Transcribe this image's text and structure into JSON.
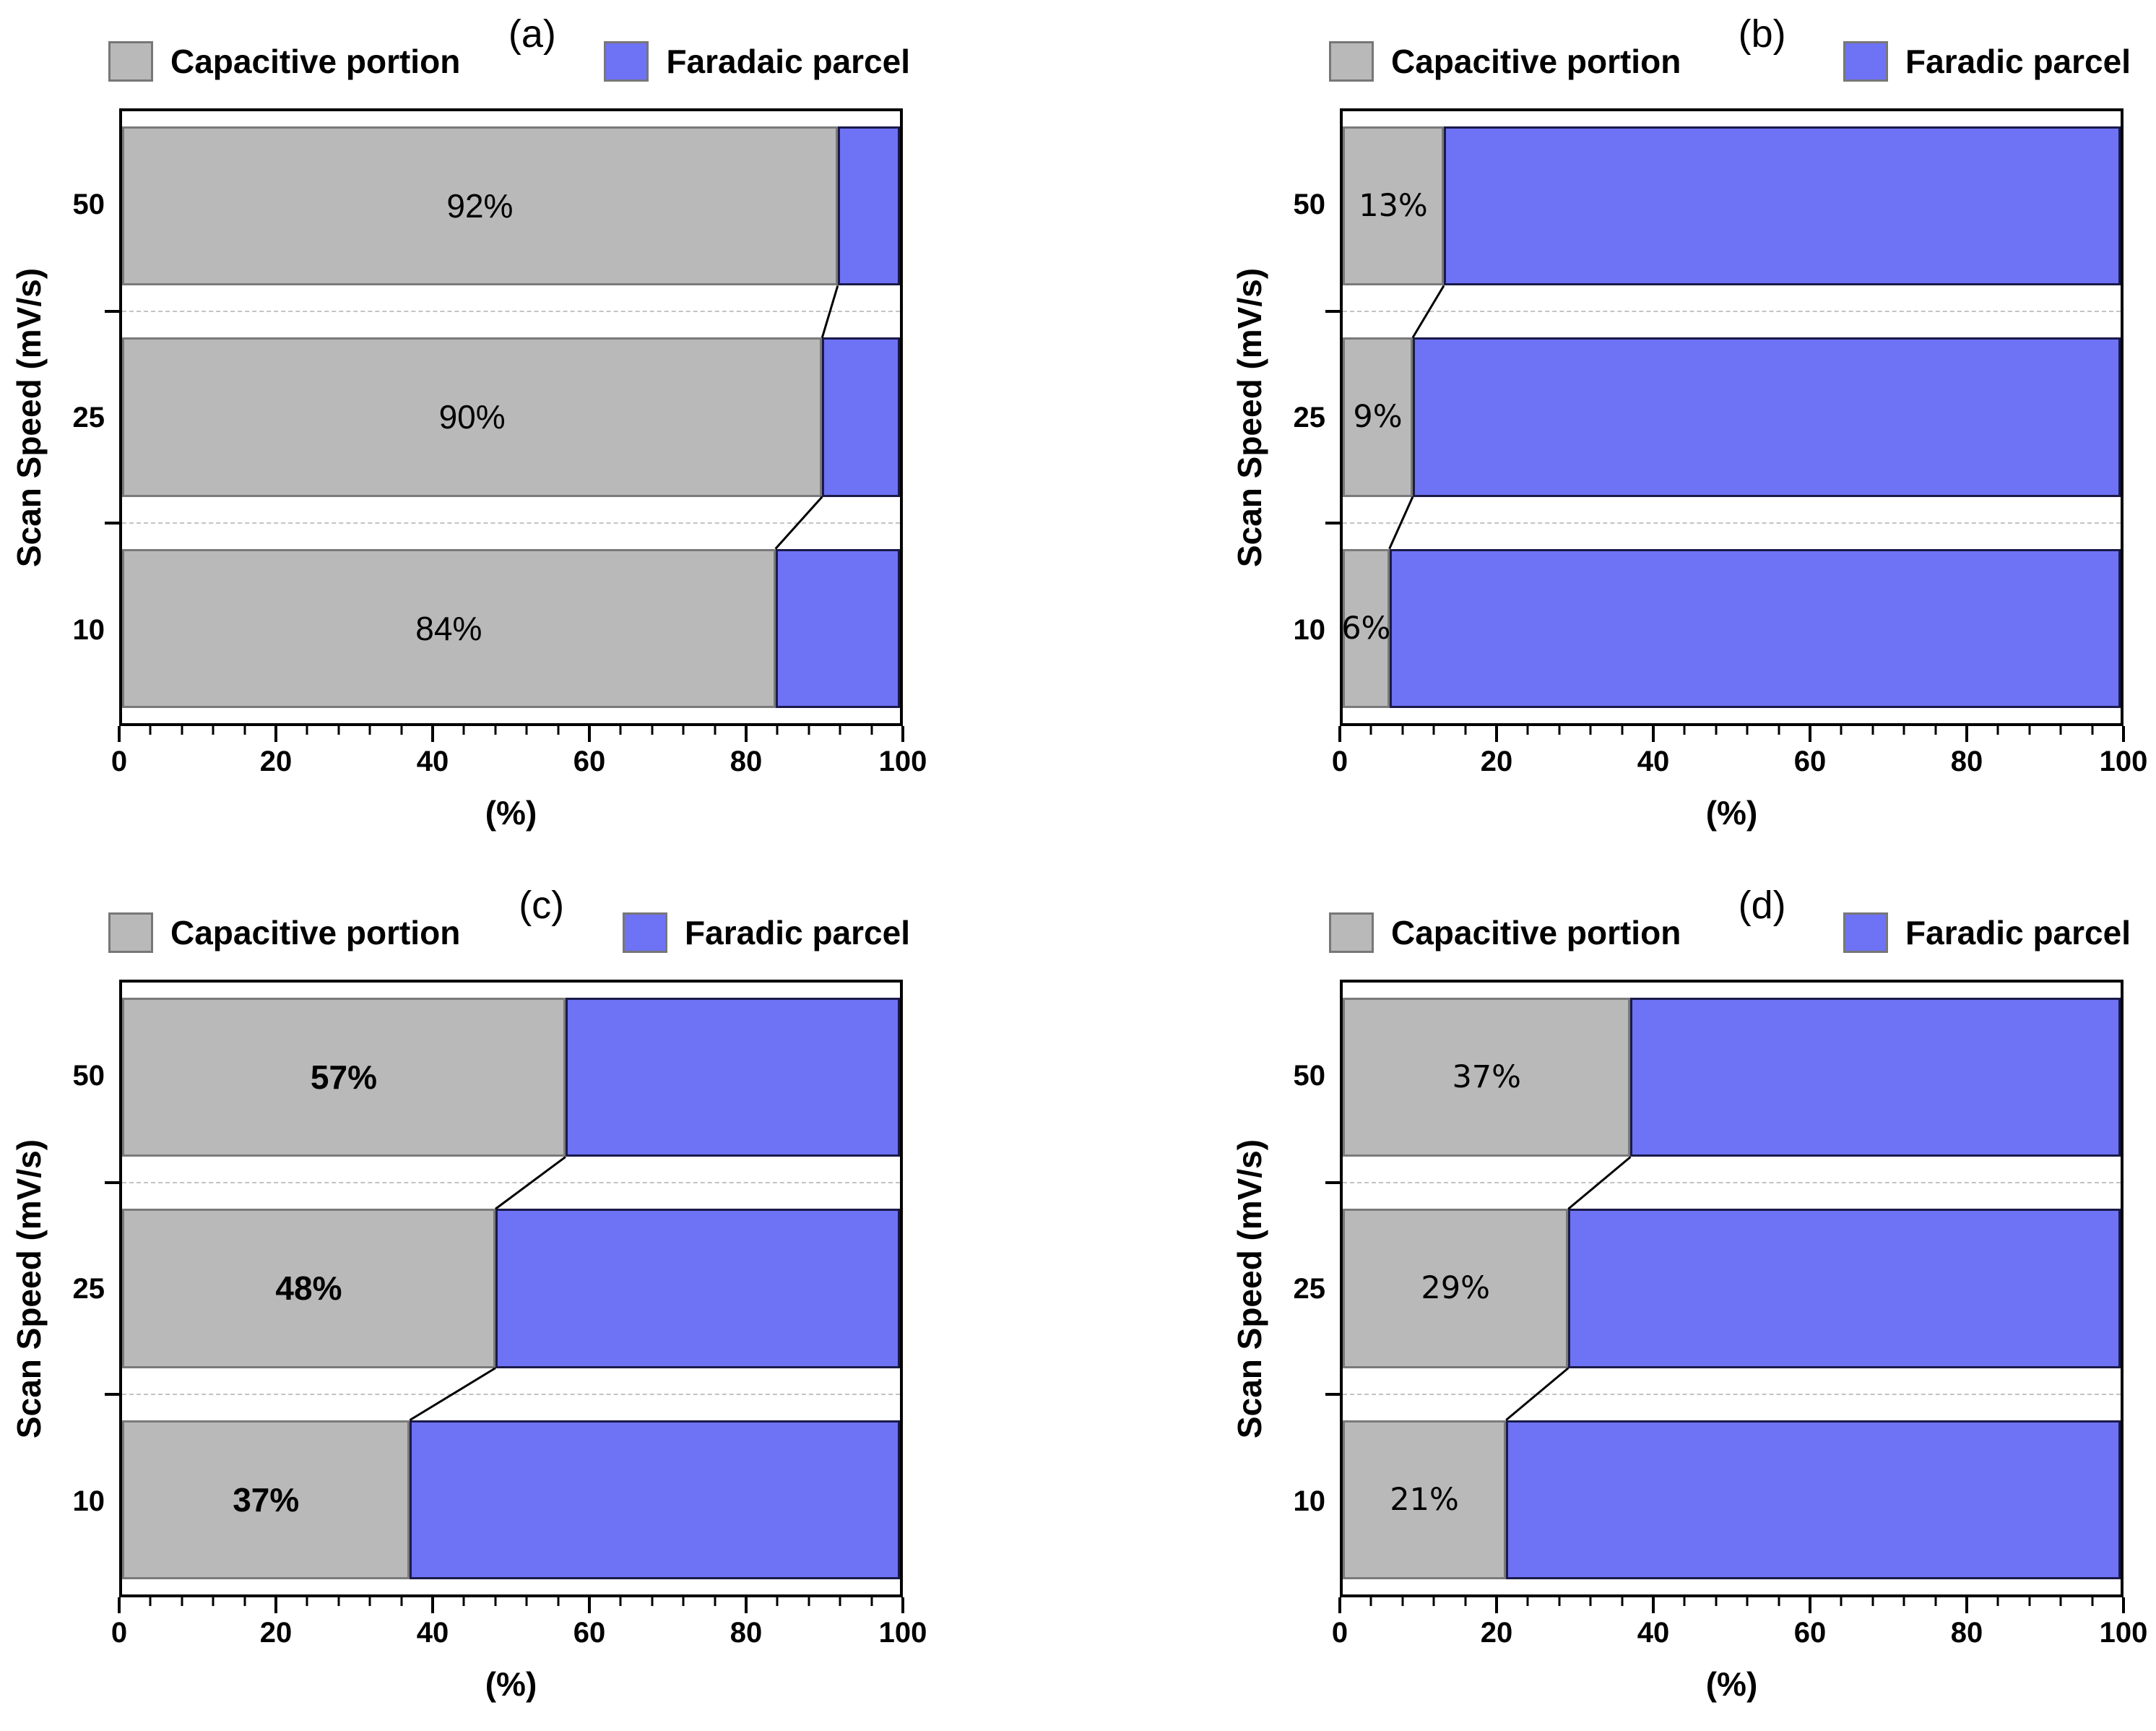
{
  "colors": {
    "capacitive_fill": "#b9b9b9",
    "capacitive_border": "#7a7a7a",
    "faradaic_fill": "#6e72f4",
    "faradaic_border": "#1a1a4a",
    "frame": "#000000",
    "grid_dash": "#c3c3c3"
  },
  "chart_data": [
    {
      "panel": "a",
      "title": "(a)",
      "type": "bar",
      "orientation": "horizontal",
      "stacked": true,
      "categories": [
        "50",
        "25",
        "10"
      ],
      "series": [
        {
          "name": "Capacitive portion",
          "values": [
            92,
            90,
            84
          ]
        },
        {
          "name": "Faradaic parcel",
          "values": [
            8,
            10,
            16
          ]
        }
      ],
      "bar_labels": [
        "92%",
        "90%",
        "84%"
      ],
      "xlabel": "(%)",
      "ylabel": "Scan Speed (mV/s)",
      "xlim": [
        0,
        100
      ],
      "xticks": [
        0,
        20,
        40,
        60,
        80,
        100
      ],
      "grid": "dashed-between-categories",
      "legend_position": "top"
    },
    {
      "panel": "b",
      "title": "(b)",
      "type": "bar",
      "orientation": "horizontal",
      "stacked": true,
      "categories": [
        "50",
        "25",
        "10"
      ],
      "series": [
        {
          "name": "Capacitive portion",
          "values": [
            13,
            9,
            6
          ]
        },
        {
          "name": "Faradic parcel",
          "values": [
            87,
            91,
            94
          ]
        }
      ],
      "bar_labels": [
        "13%",
        "9%",
        "6%"
      ],
      "xlabel": "(%)",
      "ylabel": "Scan Speed (mV/s)",
      "xlim": [
        0,
        100
      ],
      "xticks": [
        0,
        20,
        40,
        60,
        80,
        100
      ],
      "grid": "dashed-between-categories",
      "legend_position": "top"
    },
    {
      "panel": "c",
      "title": "(c)",
      "type": "bar",
      "orientation": "horizontal",
      "stacked": true,
      "categories": [
        "50",
        "25",
        "10"
      ],
      "series": [
        {
          "name": "Capacitive portion",
          "values": [
            57,
            48,
            37
          ]
        },
        {
          "name": "Faradic parcel",
          "values": [
            43,
            52,
            63
          ]
        }
      ],
      "bar_labels": [
        "57%",
        "48%",
        "37%"
      ],
      "xlabel": "(%)",
      "ylabel": "Scan Speed (mV/s)",
      "xlim": [
        0,
        100
      ],
      "xticks": [
        0,
        20,
        40,
        60,
        80,
        100
      ],
      "grid": "dashed-between-categories",
      "legend_position": "top"
    },
    {
      "panel": "d",
      "title": "(d)",
      "type": "bar",
      "orientation": "horizontal",
      "stacked": true,
      "categories": [
        "50",
        "25",
        "10"
      ],
      "series": [
        {
          "name": "Capacitive portion",
          "values": [
            37,
            29,
            21
          ]
        },
        {
          "name": "Faradic parcel",
          "values": [
            63,
            71,
            79
          ]
        }
      ],
      "bar_labels": [
        "37%",
        "29%",
        "21%"
      ],
      "xlabel": "(%)",
      "ylabel": "Scan Speed (mV/s)",
      "xlim": [
        0,
        100
      ],
      "xticks": [
        0,
        20,
        40,
        60,
        80,
        100
      ],
      "grid": "dashed-between-categories",
      "legend_position": "top"
    }
  ]
}
